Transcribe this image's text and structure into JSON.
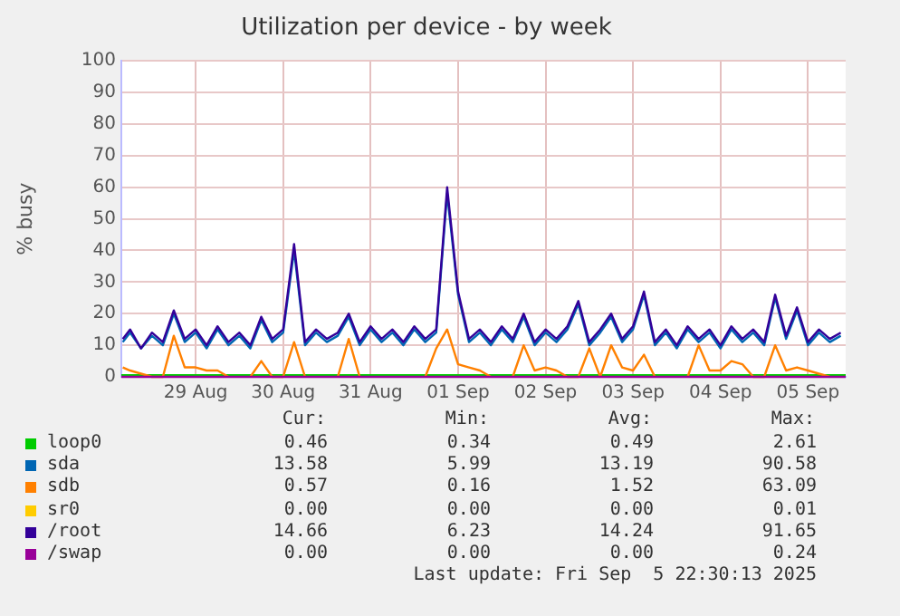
{
  "chart_data": {
    "type": "line",
    "title": "Utilization per device - by week",
    "ylabel": "% busy",
    "x": [
      "2025-08-28T16:00",
      "2025-08-28T18:00",
      "2025-08-28T21:00",
      "2025-08-29T00:00",
      "2025-08-29T03:00",
      "2025-08-29T06:00",
      "2025-08-29T09:00",
      "2025-08-29T12:00",
      "2025-08-29T15:00",
      "2025-08-29T18:00",
      "2025-08-29T21:00",
      "2025-08-30T00:00",
      "2025-08-30T03:00",
      "2025-08-30T06:00",
      "2025-08-30T09:00",
      "2025-08-30T12:00",
      "2025-08-30T15:00",
      "2025-08-30T18:00",
      "2025-08-30T21:00",
      "2025-08-31T00:00",
      "2025-08-31T03:00",
      "2025-08-31T06:00",
      "2025-08-31T09:00",
      "2025-08-31T12:00",
      "2025-08-31T15:00",
      "2025-08-31T18:00",
      "2025-08-31T21:00",
      "2025-09-01T00:00",
      "2025-09-01T03:00",
      "2025-09-01T06:00",
      "2025-09-01T09:00",
      "2025-09-01T12:00",
      "2025-09-01T15:00",
      "2025-09-01T18:00",
      "2025-09-01T21:00",
      "2025-09-02T00:00",
      "2025-09-02T03:00",
      "2025-09-02T06:00",
      "2025-09-02T09:00",
      "2025-09-02T12:00",
      "2025-09-02T15:00",
      "2025-09-02T18:00",
      "2025-09-02T21:00",
      "2025-09-03T00:00",
      "2025-09-03T03:00",
      "2025-09-03T06:00",
      "2025-09-03T09:00",
      "2025-09-03T12:00",
      "2025-09-03T15:00",
      "2025-09-03T18:00",
      "2025-09-03T21:00",
      "2025-09-04T00:00",
      "2025-09-04T03:00",
      "2025-09-04T06:00",
      "2025-09-04T09:00",
      "2025-09-04T12:00",
      "2025-09-04T15:00",
      "2025-09-04T18:00",
      "2025-09-04T21:00",
      "2025-09-05T00:00",
      "2025-09-05T03:00",
      "2025-09-05T06:00",
      "2025-09-05T09:00",
      "2025-09-05T12:00",
      "2025-09-05T15:00",
      "2025-09-05T18:00",
      "2025-09-05T21:00"
    ],
    "series": [
      {
        "name": "loop0",
        "color": "#00cc00",
        "x": [
          "2025-08-28T15:36",
          "2025-09-05T22:21"
        ],
        "values": [
          0.5,
          0.5
        ]
      },
      {
        "name": "sda",
        "color": "#0066b3",
        "values": [
          11,
          14,
          9,
          13,
          10,
          20,
          11,
          14,
          9,
          15,
          10,
          13,
          9,
          18,
          11,
          14,
          40,
          10,
          14,
          11,
          13,
          19,
          10,
          15,
          11,
          14,
          10,
          15,
          11,
          14,
          58,
          26,
          11,
          14,
          10,
          15,
          11,
          19,
          10,
          14,
          11,
          15,
          23,
          10,
          14,
          19,
          11,
          15,
          26,
          10,
          14,
          9,
          15,
          11,
          14,
          9,
          15,
          11,
          14,
          10,
          25,
          12,
          21,
          10,
          14,
          11,
          13
        ]
      },
      {
        "name": "sdb",
        "color": "#ff8000",
        "values": [
          3,
          2,
          1,
          0,
          0,
          13,
          3,
          3,
          2,
          2,
          0,
          null,
          0,
          5,
          0,
          0,
          11,
          0,
          null,
          null,
          0,
          12,
          0,
          null,
          null,
          null,
          null,
          null,
          0,
          9,
          15,
          4,
          3,
          2,
          0,
          null,
          0,
          10,
          2,
          3,
          2,
          0,
          0,
          9,
          0,
          10,
          3,
          2,
          7,
          0,
          null,
          null,
          0,
          10,
          2,
          2,
          5,
          4,
          0,
          0,
          10,
          2,
          3,
          2,
          1,
          0,
          null
        ]
      },
      {
        "name": "sr0",
        "color": "#ffcc00",
        "values": [
          null,
          null,
          null,
          null,
          null,
          null,
          null,
          null,
          null,
          null,
          null,
          null,
          null,
          null,
          null,
          null,
          null,
          null,
          null,
          null,
          null,
          null,
          null,
          null,
          null,
          null,
          null,
          null,
          null,
          null,
          null,
          null,
          null,
          null,
          null,
          null,
          null,
          null,
          null,
          null,
          null,
          null,
          null,
          null,
          null,
          null,
          null,
          null,
          null,
          null,
          null,
          null,
          null,
          null,
          null,
          null,
          null,
          null,
          null,
          null,
          null,
          null,
          null,
          null,
          null,
          null,
          null
        ]
      },
      {
        "name": "/root",
        "color": "#330099",
        "values": [
          12,
          15,
          9,
          14,
          11,
          21,
          12,
          15,
          10,
          16,
          11,
          14,
          10,
          19,
          12,
          15,
          42,
          11,
          15,
          12,
          14,
          20,
          11,
          16,
          12,
          15,
          11,
          16,
          12,
          15,
          60,
          27,
          12,
          15,
          11,
          16,
          12,
          20,
          11,
          15,
          12,
          16,
          24,
          11,
          15,
          20,
          12,
          16,
          27,
          11,
          15,
          10,
          16,
          12,
          15,
          10,
          16,
          12,
          15,
          11,
          26,
          13,
          22,
          11,
          15,
          12,
          14
        ]
      },
      {
        "name": "/swap",
        "color": "#990099",
        "x": [
          "2025-08-28T15:36",
          "2025-09-05T22:21"
        ],
        "values": [
          0,
          0
        ]
      }
    ],
    "xlim": [
      "2025-08-28T15:36",
      "2025-09-05T22:21"
    ],
    "xticks": [
      {
        "value": "2025-08-29T12:00",
        "label": "29 Aug"
      },
      {
        "value": "2025-08-30T12:00",
        "label": "30 Aug"
      },
      {
        "value": "2025-08-31T12:00",
        "label": "31 Aug"
      },
      {
        "value": "2025-09-01T12:00",
        "label": "01 Sep"
      },
      {
        "value": "2025-09-02T12:00",
        "label": "02 Sep"
      },
      {
        "value": "2025-09-03T12:00",
        "label": "03 Sep"
      },
      {
        "value": "2025-09-04T12:00",
        "label": "04 Sep"
      },
      {
        "value": "2025-09-05T12:00",
        "label": "05 Sep"
      }
    ],
    "ylim": [
      0,
      100
    ],
    "yticks": [
      0,
      10,
      20,
      30,
      40,
      50,
      60,
      70,
      80,
      90,
      100
    ],
    "grid": true,
    "legend": "bottom",
    "marker": "none",
    "line_style": "solid",
    "annotations": [
      "Cur:",
      "Min:",
      "Avg:",
      "Max:",
      "0.46",
      "0.34",
      "0.49",
      "2.61",
      "13.58",
      "5.99",
      "13.19",
      "90.58",
      "0.57",
      "0.16",
      "1.52",
      "63.09",
      "0.00",
      "0.00",
      "0.00",
      "0.01",
      "14.66",
      "6.23",
      "14.24",
      "91.65",
      "0.00",
      "0.00",
      "0.00",
      "0.24",
      "Last update: Fri Sep  5 22:30:13 2025"
    ]
  }
}
